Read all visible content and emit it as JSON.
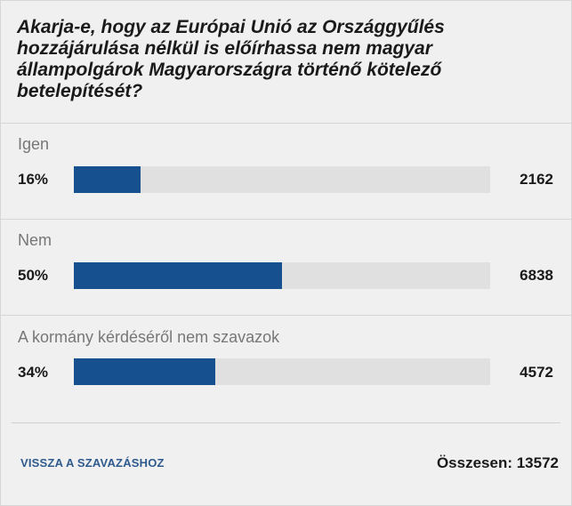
{
  "poll": {
    "question": "Akarja-e, hogy az Európai Unió az Országgyűlés hozzájárulása nélkül is előírhassa nem magyar állampolgárok Magyarországra történő kötelező betelepítését?",
    "options": [
      {
        "label": "Igen",
        "percent_text": "16%",
        "share": 0.16,
        "count": "2162"
      },
      {
        "label": "Nem",
        "percent_text": "50%",
        "share": 0.5,
        "count": "6838"
      },
      {
        "label": "A kormány kérdéséről nem szavazok",
        "percent_text": "34%",
        "share": 0.34,
        "count": "4572"
      }
    ],
    "back_label": "VISSZA A SZAVAZÁSHOZ",
    "total_text": "Összesen: 13572"
  },
  "colors": {
    "bar_fill": "#17508f",
    "bar_track": "#e0e0e0",
    "background": "#f0f0f0",
    "link": "#2e5a8e"
  }
}
